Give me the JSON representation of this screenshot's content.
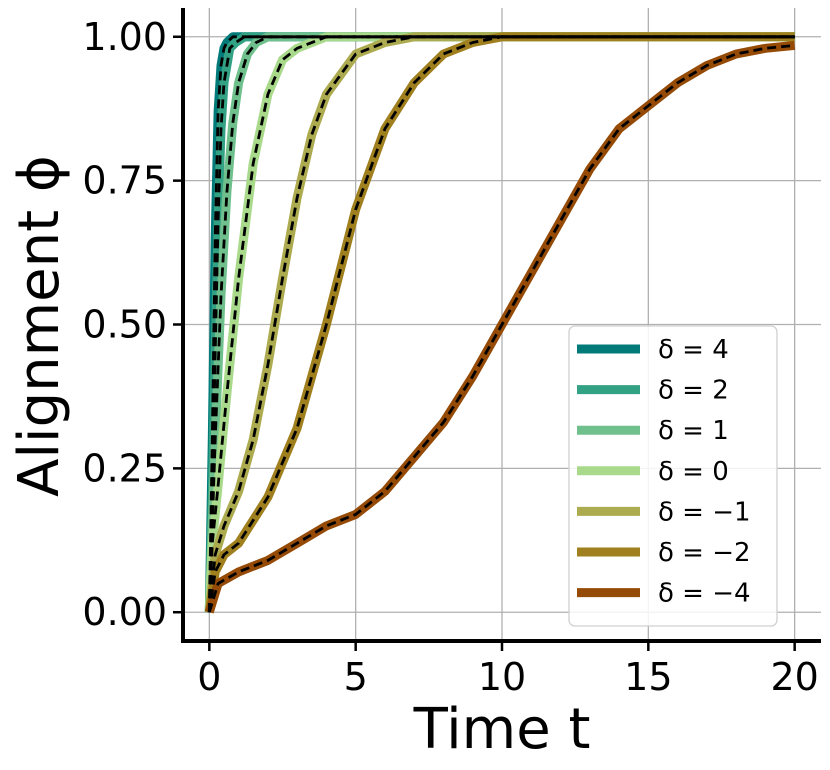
{
  "chart_data": {
    "type": "line",
    "xlabel": "Time t",
    "ylabel": "Alignment ϕ",
    "xlim": [
      -0.9,
      20.9
    ],
    "ylim": [
      -0.05,
      1.05
    ],
    "xticks": [
      0,
      5,
      10,
      15,
      20
    ],
    "xtick_labels": [
      "0",
      "5",
      "10",
      "15",
      "20"
    ],
    "yticks": [
      0.0,
      0.25,
      0.5,
      0.75,
      1.0
    ],
    "ytick_labels": [
      "0.00",
      "0.25",
      "0.50",
      "0.75",
      "1.00"
    ],
    "grid": true,
    "legend_position": "bottom-right",
    "dashed_overlay": {
      "color": "#000000",
      "style": "dashed"
    },
    "series": [
      {
        "name": "δ = 4",
        "color": "#007b7a",
        "x": [
          0,
          0.1,
          0.2,
          0.3,
          0.4,
          0.5,
          0.6,
          0.8,
          1.0,
          1.5,
          20
        ],
        "y": [
          0,
          0.3,
          0.65,
          0.87,
          0.95,
          0.98,
          0.99,
          1.0,
          1.0,
          1.0,
          1.0
        ]
      },
      {
        "name": "δ = 2",
        "color": "#33a183",
        "x": [
          0,
          0.1,
          0.2,
          0.3,
          0.4,
          0.5,
          0.7,
          0.9,
          1.2,
          1.5,
          20
        ],
        "y": [
          0,
          0.2,
          0.45,
          0.68,
          0.84,
          0.92,
          0.98,
          0.99,
          1.0,
          1.0,
          1.0
        ]
      },
      {
        "name": "δ = 1",
        "color": "#6fc08d",
        "x": [
          0,
          0.1,
          0.2,
          0.4,
          0.6,
          0.8,
          1.0,
          1.3,
          1.6,
          2.0,
          3.0,
          20
        ],
        "y": [
          0,
          0.15,
          0.3,
          0.55,
          0.73,
          0.85,
          0.92,
          0.97,
          0.99,
          1.0,
          1.0,
          1.0
        ]
      },
      {
        "name": "δ = 0",
        "color": "#a9d98a",
        "x": [
          0,
          0.1,
          0.3,
          0.6,
          1.0,
          1.5,
          2.0,
          2.5,
          3.0,
          4.0,
          5.0,
          20
        ],
        "y": [
          0,
          0.12,
          0.22,
          0.38,
          0.58,
          0.78,
          0.9,
          0.96,
          0.98,
          1.0,
          1.0,
          1.0
        ]
      },
      {
        "name": "δ = −1",
        "color": "#adab4f",
        "x": [
          0,
          0.2,
          0.5,
          1.0,
          1.5,
          2.0,
          2.5,
          3.0,
          3.5,
          4.0,
          5.0,
          6.0,
          7.0,
          8.0,
          20
        ],
        "y": [
          0,
          0.1,
          0.15,
          0.21,
          0.3,
          0.43,
          0.58,
          0.72,
          0.83,
          0.9,
          0.97,
          0.99,
          1.0,
          1.0,
          1.0
        ]
      },
      {
        "name": "δ = −2",
        "color": "#a0801e",
        "x": [
          0,
          0.2,
          0.5,
          1.0,
          2.0,
          3.0,
          4.0,
          5.0,
          6.0,
          7.0,
          8.0,
          9.0,
          10.0,
          12.0,
          20
        ],
        "y": [
          0,
          0.07,
          0.1,
          0.12,
          0.2,
          0.32,
          0.5,
          0.7,
          0.84,
          0.92,
          0.97,
          0.99,
          1.0,
          1.0,
          1.0
        ]
      },
      {
        "name": "δ = −4",
        "color": "#954a05",
        "x": [
          0,
          0.3,
          1.0,
          2.0,
          3.0,
          4.0,
          5.0,
          6.0,
          7.0,
          8.0,
          9.0,
          10.0,
          11.0,
          12.0,
          13.0,
          14.0,
          15.0,
          16.0,
          17.0,
          18.0,
          19.0,
          20.0
        ],
        "y": [
          0,
          0.05,
          0.07,
          0.09,
          0.12,
          0.15,
          0.17,
          0.21,
          0.27,
          0.33,
          0.41,
          0.5,
          0.59,
          0.68,
          0.77,
          0.84,
          0.88,
          0.92,
          0.95,
          0.97,
          0.98,
          0.985
        ]
      }
    ]
  }
}
